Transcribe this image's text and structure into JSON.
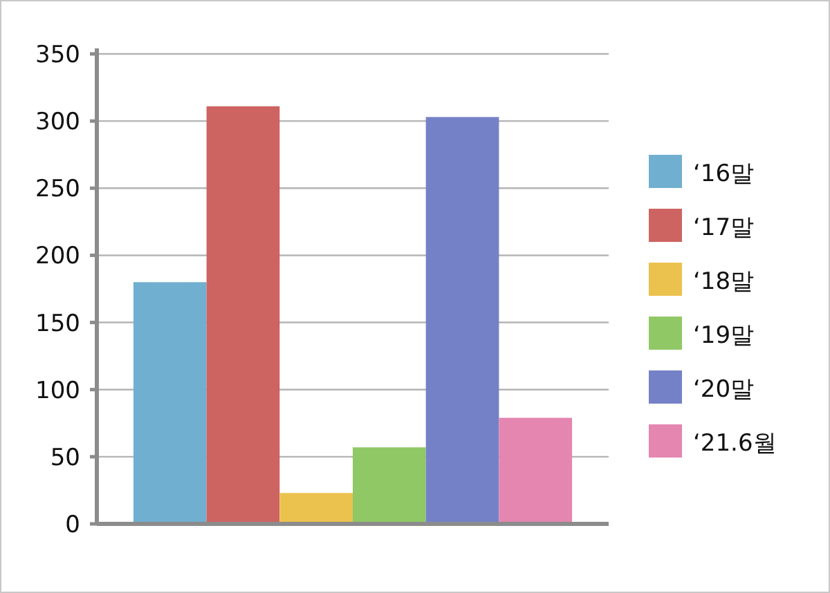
{
  "chart_data": {
    "type": "bar",
    "categories": [
      null
    ],
    "series": [
      {
        "name": "‘16말",
        "color": "#71afd0",
        "values": [
          180
        ]
      },
      {
        "name": "‘17말",
        "color": "#cd6462",
        "values": [
          311
        ]
      },
      {
        "name": "‘18말",
        "color": "#ecc24f",
        "values": [
          23
        ]
      },
      {
        "name": "‘19말",
        "color": "#90c866",
        "values": [
          57
        ]
      },
      {
        "name": "‘20말",
        "color": "#7581c7",
        "values": [
          303
        ]
      },
      {
        "name": "‘21.6월",
        "color": "#e586b0",
        "values": [
          79
        ]
      }
    ],
    "ylim": [
      0,
      350
    ],
    "yticks": [
      0,
      50,
      100,
      150,
      200,
      250,
      300,
      350
    ],
    "grid": "y",
    "legend": "right"
  }
}
